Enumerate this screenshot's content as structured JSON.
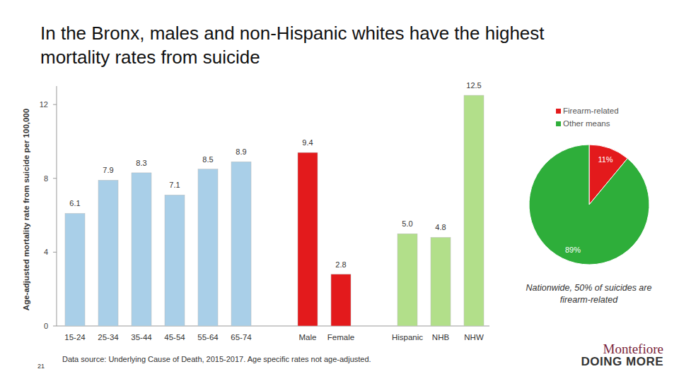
{
  "title": "In the Bronx, males and non-Hispanic whites have the highest mortality rates from suicide",
  "footnote": "Data source: Underlying Cause of Death, 2015-2017.  Age specific rates not age-adjusted.",
  "page_number": "21",
  "logo": {
    "name": "Montefiore",
    "tagline": "DOING MORE"
  },
  "chart_data": [
    {
      "type": "bar",
      "y_label": "Age-adjusted mortality rate from suicide per 100,000",
      "categories": [
        "15-24",
        "25-34",
        "35-44",
        "45-54",
        "55-64",
        "65-74",
        null,
        "Male",
        "Female",
        null,
        "Hispanic",
        "NHB",
        "NHW"
      ],
      "values": [
        6.1,
        7.9,
        8.3,
        7.1,
        8.5,
        8.9,
        null,
        9.4,
        2.8,
        null,
        5.0,
        4.8,
        12.5
      ],
      "value_labels": [
        "6.1",
        "7.9",
        "8.3",
        "7.1",
        "8.5",
        "8.9",
        null,
        "9.4",
        "2.8",
        null,
        "5.0",
        "4.8",
        "12.5"
      ],
      "colors": [
        "#a9cfe8",
        "#a9cfe8",
        "#a9cfe8",
        "#a9cfe8",
        "#a9cfe8",
        "#a9cfe8",
        null,
        "#e31a1c",
        "#e31a1c",
        null,
        "#b2df8a",
        "#b2df8a",
        "#b2df8a"
      ],
      "ylim": [
        0,
        13
      ],
      "yticks": [
        0,
        4,
        8,
        12
      ],
      "grid": false,
      "data_labels": true
    },
    {
      "type": "pie",
      "categories": [
        "Firearm-related",
        "Other means"
      ],
      "values": [
        11,
        89
      ],
      "value_labels": [
        "11%",
        "89%"
      ],
      "colors": [
        "#e31a1c",
        "#2eae3a"
      ],
      "legend": "top",
      "data_labels": true,
      "annotation": "Nationwide, 50% of suicides are firearm-related"
    }
  ]
}
